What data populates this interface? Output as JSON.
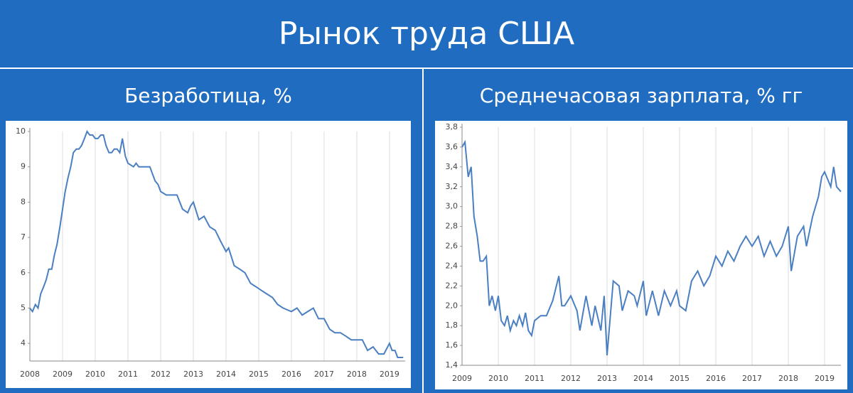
{
  "header": {
    "title": "Рынок труда США"
  },
  "chart_data": [
    {
      "type": "line",
      "title": "Безработица, %",
      "color": "#4a7fc1",
      "grid": "x",
      "xlim": [
        2008,
        2019.48
      ],
      "xticks": [
        2008,
        2009,
        2010,
        2011,
        2012,
        2013,
        2014,
        2015,
        2016,
        2017,
        2018,
        2019
      ],
      "ylim": [
        3.5,
        10
      ],
      "yticks": [
        4,
        5,
        6,
        7,
        8,
        9,
        10
      ],
      "x": [
        2008,
        2008.08,
        2008.17,
        2008.25,
        2008.33,
        2008.42,
        2008.5,
        2008.58,
        2008.67,
        2008.75,
        2008.83,
        2008.92,
        2009,
        2009.08,
        2009.17,
        2009.25,
        2009.33,
        2009.42,
        2009.5,
        2009.58,
        2009.67,
        2009.75,
        2009.83,
        2009.92,
        2010,
        2010.08,
        2010.17,
        2010.25,
        2010.33,
        2010.42,
        2010.5,
        2010.58,
        2010.67,
        2010.75,
        2010.83,
        2010.92,
        2011,
        2011.17,
        2011.25,
        2011.33,
        2011.5,
        2011.67,
        2011.83,
        2011.92,
        2012,
        2012.17,
        2012.33,
        2012.5,
        2012.67,
        2012.83,
        2012.92,
        2013,
        2013.17,
        2013.33,
        2013.5,
        2013.67,
        2013.83,
        2014,
        2014.08,
        2014.25,
        2014.42,
        2014.58,
        2014.75,
        2014.92,
        2015.08,
        2015.25,
        2015.42,
        2015.58,
        2015.75,
        2016,
        2016.17,
        2016.33,
        2016.5,
        2016.67,
        2016.83,
        2017,
        2017.17,
        2017.33,
        2017.5,
        2017.67,
        2017.83,
        2018,
        2018.17,
        2018.33,
        2018.5,
        2018.67,
        2018.83,
        2019,
        2019.08,
        2019.17,
        2019.25,
        2019.42
      ],
      "values": [
        5.0,
        4.9,
        5.1,
        5.0,
        5.4,
        5.6,
        5.8,
        6.1,
        6.1,
        6.5,
        6.8,
        7.3,
        7.8,
        8.3,
        8.7,
        9.0,
        9.4,
        9.5,
        9.5,
        9.6,
        9.8,
        10.0,
        9.9,
        9.9,
        9.8,
        9.8,
        9.9,
        9.9,
        9.6,
        9.4,
        9.4,
        9.5,
        9.5,
        9.4,
        9.8,
        9.3,
        9.1,
        9.0,
        9.1,
        9.0,
        9.0,
        9.0,
        8.6,
        8.5,
        8.3,
        8.2,
        8.2,
        8.2,
        7.8,
        7.7,
        7.9,
        8.0,
        7.5,
        7.6,
        7.3,
        7.2,
        6.9,
        6.6,
        6.7,
        6.2,
        6.1,
        6.0,
        5.7,
        5.6,
        5.5,
        5.4,
        5.3,
        5.1,
        5.0,
        4.9,
        5.0,
        4.8,
        4.9,
        5.0,
        4.7,
        4.7,
        4.4,
        4.3,
        4.3,
        4.2,
        4.1,
        4.1,
        4.1,
        3.8,
        3.9,
        3.7,
        3.7,
        4.0,
        3.8,
        3.8,
        3.6,
        3.6
      ]
    },
    {
      "type": "line",
      "title": "Среднечасовая зарплата, % гг",
      "color": "#4a7fc1",
      "grid": "x",
      "xlim": [
        2009,
        2019.45
      ],
      "xticks": [
        2009,
        2010,
        2011,
        2012,
        2013,
        2014,
        2015,
        2016,
        2017,
        2018,
        2019
      ],
      "ylim": [
        1.4,
        3.8
      ],
      "yticks": [
        {
          "value": 1.4,
          "label": "1,4"
        },
        {
          "value": 1.6,
          "label": "1,6"
        },
        {
          "value": 1.8,
          "label": "1,8"
        },
        {
          "value": 2.0,
          "label": "2,0"
        },
        {
          "value": 2.2,
          "label": "2,2"
        },
        {
          "value": 2.4,
          "label": "2,4"
        },
        {
          "value": 2.6,
          "label": "2,6"
        },
        {
          "value": 2.8,
          "label": "2,8"
        },
        {
          "value": 3.0,
          "label": "3,0"
        },
        {
          "value": 3.2,
          "label": "3,2"
        },
        {
          "value": 3.4,
          "label": "3,4"
        },
        {
          "value": 3.6,
          "label": "3,6"
        },
        {
          "value": 3.8,
          "label": "3,8"
        }
      ],
      "x": [
        2009,
        2009.08,
        2009.17,
        2009.25,
        2009.33,
        2009.42,
        2009.5,
        2009.58,
        2009.67,
        2009.75,
        2009.83,
        2009.92,
        2010,
        2010.08,
        2010.17,
        2010.25,
        2010.33,
        2010.42,
        2010.5,
        2010.58,
        2010.67,
        2010.75,
        2010.83,
        2010.92,
        2011,
        2011.17,
        2011.33,
        2011.5,
        2011.67,
        2011.75,
        2011.83,
        2012,
        2012.17,
        2012.25,
        2012.42,
        2012.58,
        2012.67,
        2012.83,
        2012.92,
        2013,
        2013.17,
        2013.33,
        2013.42,
        2013.58,
        2013.75,
        2013.83,
        2014,
        2014.08,
        2014.25,
        2014.42,
        2014.58,
        2014.75,
        2014.92,
        2015,
        2015.17,
        2015.33,
        2015.5,
        2015.67,
        2015.83,
        2016,
        2016.17,
        2016.33,
        2016.5,
        2016.67,
        2016.83,
        2017,
        2017.17,
        2017.33,
        2017.5,
        2017.67,
        2017.83,
        2018,
        2018.08,
        2018.25,
        2018.42,
        2018.5,
        2018.67,
        2018.83,
        2018.92,
        2019,
        2019.17,
        2019.25,
        2019.33,
        2019.45
      ],
      "values": [
        3.6,
        3.65,
        3.3,
        3.4,
        2.9,
        2.7,
        2.45,
        2.45,
        2.5,
        2.0,
        2.1,
        1.95,
        2.1,
        1.85,
        1.8,
        1.9,
        1.75,
        1.85,
        1.8,
        1.9,
        1.8,
        1.93,
        1.75,
        1.7,
        1.85,
        1.9,
        1.9,
        2.05,
        2.3,
        2.0,
        2.0,
        2.1,
        1.95,
        1.75,
        2.1,
        1.8,
        2.0,
        1.75,
        2.1,
        1.5,
        2.25,
        2.2,
        1.95,
        2.15,
        2.1,
        2.0,
        2.25,
        1.9,
        2.15,
        1.9,
        2.15,
        2.0,
        2.15,
        2.0,
        1.95,
        2.25,
        2.35,
        2.2,
        2.3,
        2.5,
        2.4,
        2.55,
        2.45,
        2.6,
        2.7,
        2.6,
        2.7,
        2.5,
        2.65,
        2.5,
        2.6,
        2.8,
        2.35,
        2.7,
        2.8,
        2.6,
        2.9,
        3.1,
        3.3,
        3.35,
        3.2,
        3.4,
        3.2,
        3.15
      ]
    }
  ]
}
